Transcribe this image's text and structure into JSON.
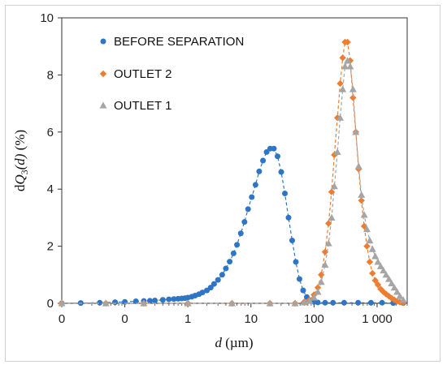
{
  "chart_data": {
    "type": "scatter",
    "x_scale": "log",
    "xlim": [
      0.01,
      3000
    ],
    "ylim": [
      0,
      10
    ],
    "x_ticks": [
      {
        "value": 0.01,
        "label": "0"
      },
      {
        "value": 0.1,
        "label": "0"
      },
      {
        "value": 1,
        "label": "1"
      },
      {
        "value": 10,
        "label": "10"
      },
      {
        "value": 100,
        "label": "100"
      },
      {
        "value": 1000,
        "label": "1 000"
      }
    ],
    "y_ticks": [
      {
        "value": 0,
        "label": "0"
      },
      {
        "value": 2,
        "label": "2"
      },
      {
        "value": 4,
        "label": "4"
      },
      {
        "value": 6,
        "label": "6"
      },
      {
        "value": 8,
        "label": "8"
      },
      {
        "value": 10,
        "label": "10"
      }
    ],
    "xlabel_var": "d",
    "xlabel_unit": " (µm)",
    "ylabel_prefix": "d",
    "ylabel_var": "Q",
    "ylabel_sub": "3",
    "ylabel_arg": "(d)",
    "ylabel_unit": " (%)",
    "grid": false,
    "legend_position": "top-left",
    "series": [
      {
        "name": "BEFORE SEPARATION",
        "color": "#2e75c6",
        "marker": "circle",
        "line": "dashed",
        "points": [
          [
            0.01,
            0
          ],
          [
            0.02,
            0.01
          ],
          [
            0.04,
            0.02
          ],
          [
            0.07,
            0.04
          ],
          [
            0.1,
            0.05
          ],
          [
            0.15,
            0.07
          ],
          [
            0.2,
            0.08
          ],
          [
            0.25,
            0.09
          ],
          [
            0.3,
            0.1
          ],
          [
            0.4,
            0.12
          ],
          [
            0.5,
            0.14
          ],
          [
            0.6,
            0.15
          ],
          [
            0.7,
            0.16
          ],
          [
            0.8,
            0.17
          ],
          [
            0.9,
            0.18
          ],
          [
            1.0,
            0.2
          ],
          [
            1.15,
            0.23
          ],
          [
            1.3,
            0.27
          ],
          [
            1.5,
            0.32
          ],
          [
            1.7,
            0.38
          ],
          [
            2.0,
            0.45
          ],
          [
            2.3,
            0.55
          ],
          [
            2.6,
            0.68
          ],
          [
            3.0,
            0.82
          ],
          [
            3.5,
            1.0
          ],
          [
            4.0,
            1.22
          ],
          [
            4.6,
            1.46
          ],
          [
            5.3,
            1.75
          ],
          [
            6.0,
            2.05
          ],
          [
            6.9,
            2.45
          ],
          [
            7.9,
            2.85
          ],
          [
            9.0,
            3.3
          ],
          [
            10.3,
            3.72
          ],
          [
            11.8,
            4.15
          ],
          [
            13.5,
            4.62
          ],
          [
            15.5,
            5.0
          ],
          [
            17.7,
            5.3
          ],
          [
            20.2,
            5.42
          ],
          [
            23.1,
            5.42
          ],
          [
            26.4,
            5.15
          ],
          [
            30.2,
            4.6
          ],
          [
            34.5,
            3.85
          ],
          [
            39.4,
            3.0
          ],
          [
            45,
            2.2
          ],
          [
            51.5,
            1.45
          ],
          [
            58.8,
            0.85
          ],
          [
            67.2,
            0.45
          ],
          [
            76.8,
            0.22
          ],
          [
            87.8,
            0.1
          ],
          [
            100,
            0.05
          ],
          [
            115,
            0.03
          ],
          [
            150,
            0.02
          ],
          [
            200,
            0.02
          ],
          [
            300,
            0.02
          ],
          [
            500,
            0.02
          ],
          [
            800,
            0.02
          ],
          [
            1200,
            0.02
          ],
          [
            1800,
            0.01
          ],
          [
            2600,
            0.01
          ]
        ]
      },
      {
        "name": "OUTLET 2",
        "color": "#ed7d31",
        "marker": "diamond",
        "line": "dashed",
        "points": [
          [
            0.01,
            0
          ],
          [
            0.05,
            0
          ],
          [
            0.2,
            0
          ],
          [
            1,
            0
          ],
          [
            5,
            0
          ],
          [
            20,
            0
          ],
          [
            50,
            0
          ],
          [
            70,
            0.05
          ],
          [
            85,
            0.12
          ],
          [
            100,
            0.3
          ],
          [
            115,
            0.55
          ],
          [
            130,
            1.0
          ],
          [
            150,
            1.8
          ],
          [
            170,
            2.8
          ],
          [
            190,
            3.9
          ],
          [
            210,
            5.2
          ],
          [
            235,
            6.5
          ],
          [
            260,
            7.7
          ],
          [
            285,
            8.6
          ],
          [
            310,
            9.15
          ],
          [
            340,
            9.15
          ],
          [
            375,
            8.5
          ],
          [
            415,
            7.2
          ],
          [
            460,
            6.0
          ],
          [
            510,
            4.7
          ],
          [
            565,
            3.6
          ],
          [
            625,
            2.7
          ],
          [
            690,
            2.0
          ],
          [
            765,
            1.45
          ],
          [
            845,
            1.05
          ],
          [
            935,
            0.8
          ],
          [
            1030,
            0.65
          ],
          [
            1140,
            0.5
          ],
          [
            1260,
            0.4
          ],
          [
            1390,
            0.32
          ],
          [
            1540,
            0.25
          ],
          [
            1700,
            0.18
          ],
          [
            1880,
            0.12
          ],
          [
            2080,
            0.07
          ],
          [
            2300,
            0.04
          ],
          [
            2600,
            0.02
          ]
        ]
      },
      {
        "name": "OUTLET 1",
        "color": "#a5a5a5",
        "marker": "triangle",
        "line": "dashed",
        "points": [
          [
            0.01,
            0
          ],
          [
            0.05,
            0
          ],
          [
            0.2,
            0
          ],
          [
            1,
            0
          ],
          [
            5,
            0
          ],
          [
            20,
            0
          ],
          [
            50,
            0
          ],
          [
            70,
            0.03
          ],
          [
            85,
            0.08
          ],
          [
            100,
            0.2
          ],
          [
            115,
            0.4
          ],
          [
            130,
            0.75
          ],
          [
            150,
            1.35
          ],
          [
            170,
            2.1
          ],
          [
            190,
            3.0
          ],
          [
            210,
            4.1
          ],
          [
            235,
            5.3
          ],
          [
            260,
            6.5
          ],
          [
            285,
            7.5
          ],
          [
            310,
            8.3
          ],
          [
            340,
            8.5
          ],
          [
            375,
            8.3
          ],
          [
            415,
            7.5
          ],
          [
            460,
            6.0
          ],
          [
            510,
            4.8
          ],
          [
            565,
            3.8
          ],
          [
            625,
            3.1
          ],
          [
            690,
            2.6
          ],
          [
            765,
            2.2
          ],
          [
            845,
            1.9
          ],
          [
            935,
            1.65
          ],
          [
            1030,
            1.45
          ],
          [
            1140,
            1.3
          ],
          [
            1260,
            1.15
          ],
          [
            1390,
            1.0
          ],
          [
            1540,
            0.85
          ],
          [
            1700,
            0.7
          ],
          [
            1880,
            0.55
          ],
          [
            2080,
            0.4
          ],
          [
            2300,
            0.25
          ],
          [
            2600,
            0.12
          ]
        ]
      }
    ]
  }
}
